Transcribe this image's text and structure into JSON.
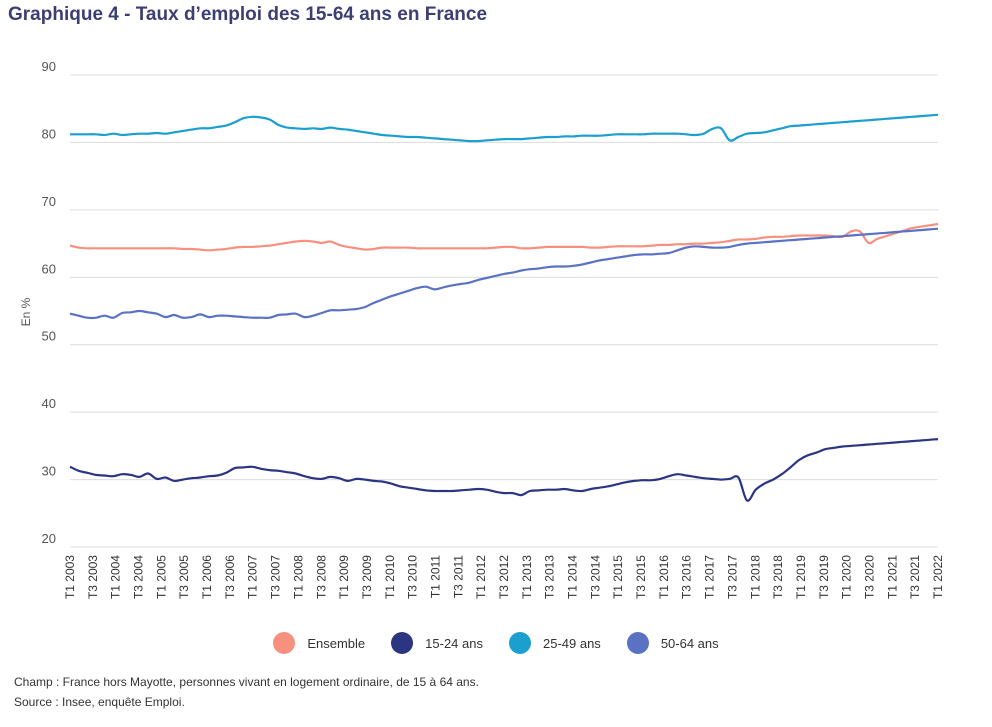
{
  "title": "Graphique 4 - Taux d’emploi des 15-64 ans en France",
  "champ": "Champ : France hors Mayotte, personnes vivant en logement ordinaire, de 15 à 64 ans.",
  "source": "Source : Insee, enquête Emploi.",
  "chart_data": {
    "type": "line",
    "title": "Graphique 4 - Taux d’emploi des 15-64 ans en France",
    "ylabel": "En %",
    "xlabel": "",
    "ylim": [
      20,
      90
    ],
    "yticks": [
      20,
      30,
      40,
      50,
      60,
      70,
      80,
      90
    ],
    "grid": "horizontal",
    "legend": "bottom",
    "x_start": "T1 2003",
    "x_labels": [
      "T1 2003",
      "T3 2003",
      "T1 2004",
      "T3 2004",
      "T1 2005",
      "T3 2005",
      "T1 2006",
      "T3 2006",
      "T1 2007",
      "T3 2007",
      "T1 2008",
      "T3 2008",
      "T1 2009",
      "T3 2009",
      "T1 2010",
      "T3 2010",
      "T1 2011",
      "T3 2011",
      "T1 2012",
      "T3 2012",
      "T1 2013",
      "T3 2013",
      "T1 2014",
      "T3 2014",
      "T1 2015",
      "T3 2015",
      "T1 2016",
      "T3 2016",
      "T1 2017",
      "T3 2017",
      "T1 2018",
      "T3 2018",
      "T1 2019",
      "T3 2019",
      "T1 2020",
      "T3 2020",
      "T1 2021",
      "T3 2021",
      "T1 2022"
    ],
    "series": [
      {
        "name": "Ensemble",
        "color": "#f7907f",
        "values": [
          64.7,
          64.4,
          64.3,
          64.3,
          64.3,
          64.3,
          64.3,
          64.3,
          64.3,
          64.3,
          64.3,
          64.3,
          64.3,
          64.2,
          64.2,
          64.1,
          64.0,
          64.1,
          64.2,
          64.4,
          64.5,
          64.5,
          64.6,
          64.7,
          64.9,
          65.1,
          65.3,
          65.4,
          65.3,
          65.1,
          65.3,
          64.8,
          64.5,
          64.3,
          64.1,
          64.2,
          64.4,
          64.4,
          64.4,
          64.4,
          64.3,
          64.3,
          64.3,
          64.3,
          64.3,
          64.3,
          64.3,
          64.3,
          64.3,
          64.4,
          64.5,
          64.5,
          64.3,
          64.3,
          64.4,
          64.5,
          64.5,
          64.5,
          64.5,
          64.5,
          64.4,
          64.4,
          64.5,
          64.6,
          64.6,
          64.6,
          64.6,
          64.7,
          64.8,
          64.8,
          64.9,
          64.9,
          65.0,
          65.0,
          65.1,
          65.2,
          65.4,
          65.6,
          65.6,
          65.7,
          65.9,
          66.0,
          66.0,
          66.1,
          66.2,
          66.2,
          66.2,
          66.2,
          66.1,
          66.0,
          66.8,
          66.8,
          65.1,
          65.7,
          66.1,
          66.5,
          66.9,
          67.3,
          67.5,
          67.7,
          67.9
        ]
      },
      {
        "name": "15-24 ans",
        "color": "#2c3582",
        "values": [
          31.9,
          31.3,
          31.0,
          30.7,
          30.6,
          30.5,
          30.8,
          30.7,
          30.4,
          30.9,
          30.1,
          30.3,
          29.8,
          30.0,
          30.2,
          30.3,
          30.5,
          30.6,
          31.0,
          31.7,
          31.8,
          31.9,
          31.6,
          31.4,
          31.3,
          31.1,
          30.9,
          30.5,
          30.2,
          30.1,
          30.4,
          30.2,
          29.8,
          30.1,
          30.0,
          29.8,
          29.7,
          29.4,
          29.0,
          28.8,
          28.6,
          28.4,
          28.3,
          28.3,
          28.3,
          28.4,
          28.5,
          28.6,
          28.5,
          28.2,
          28.0,
          28.0,
          27.7,
          28.3,
          28.4,
          28.5,
          28.5,
          28.6,
          28.4,
          28.3,
          28.6,
          28.8,
          29.0,
          29.3,
          29.6,
          29.8,
          29.9,
          29.9,
          30.1,
          30.5,
          30.8,
          30.6,
          30.4,
          30.2,
          30.1,
          30.0,
          30.1,
          30.3,
          26.9,
          28.5,
          29.4,
          30.0,
          30.8,
          31.8,
          32.9,
          33.6,
          34.0,
          34.5,
          34.7,
          34.9,
          35.0,
          35.1,
          35.2,
          35.3,
          35.4,
          35.5,
          35.6,
          35.7,
          35.8,
          35.9,
          36.0
        ]
      },
      {
        "name": "25-49 ans",
        "color": "#1a9fcf",
        "values": [
          81.2,
          81.2,
          81.2,
          81.2,
          81.1,
          81.3,
          81.1,
          81.2,
          81.3,
          81.3,
          81.4,
          81.3,
          81.5,
          81.7,
          81.9,
          82.1,
          82.1,
          82.3,
          82.5,
          83.0,
          83.6,
          83.8,
          83.7,
          83.4,
          82.6,
          82.2,
          82.1,
          82.0,
          82.1,
          82.0,
          82.2,
          82.0,
          81.9,
          81.7,
          81.5,
          81.3,
          81.1,
          81.0,
          80.9,
          80.8,
          80.8,
          80.7,
          80.6,
          80.5,
          80.4,
          80.3,
          80.2,
          80.2,
          80.3,
          80.4,
          80.5,
          80.5,
          80.5,
          80.6,
          80.7,
          80.8,
          80.8,
          80.9,
          80.9,
          81.0,
          81.0,
          81.0,
          81.1,
          81.2,
          81.2,
          81.2,
          81.2,
          81.3,
          81.3,
          81.3,
          81.3,
          81.2,
          81.1,
          81.3,
          82.0,
          82.1,
          80.3,
          80.8,
          81.3,
          81.4,
          81.5,
          81.8,
          82.1,
          82.4,
          82.5,
          82.6,
          82.7,
          82.8,
          82.9,
          83.0,
          83.1,
          83.2,
          83.3,
          83.4,
          83.5,
          83.6,
          83.7,
          83.8,
          83.9,
          84.0,
          84.1
        ]
      },
      {
        "name": "50-64 ans",
        "color": "#5a72c4",
        "values": [
          54.6,
          54.3,
          54.0,
          54.0,
          54.3,
          54.0,
          54.7,
          54.8,
          55.0,
          54.8,
          54.6,
          54.1,
          54.4,
          54.0,
          54.1,
          54.5,
          54.1,
          54.3,
          54.3,
          54.2,
          54.1,
          54.0,
          54.0,
          54.0,
          54.4,
          54.5,
          54.6,
          54.1,
          54.3,
          54.7,
          55.1,
          55.1,
          55.2,
          55.3,
          55.6,
          56.2,
          56.7,
          57.2,
          57.6,
          58.0,
          58.4,
          58.6,
          58.2,
          58.5,
          58.8,
          59.0,
          59.2,
          59.6,
          59.9,
          60.2,
          60.5,
          60.7,
          61.0,
          61.2,
          61.3,
          61.5,
          61.6,
          61.6,
          61.7,
          61.9,
          62.2,
          62.5,
          62.7,
          62.9,
          63.1,
          63.3,
          63.4,
          63.4,
          63.5,
          63.6,
          64.0,
          64.4,
          64.6,
          64.5,
          64.4,
          64.4,
          64.5,
          64.8,
          65.0,
          65.1,
          65.2,
          65.3,
          65.4,
          65.5,
          65.6,
          65.7,
          65.8,
          65.9,
          66.0,
          66.1,
          66.2,
          66.3,
          66.4,
          66.5,
          66.6,
          66.7,
          66.8,
          66.9,
          67.0,
          67.1,
          67.2
        ]
      }
    ]
  }
}
